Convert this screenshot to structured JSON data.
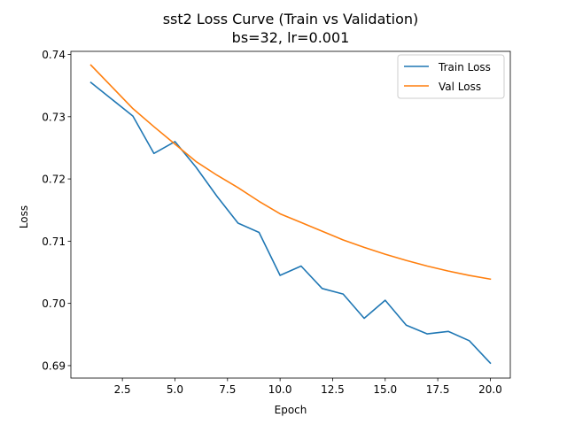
{
  "chart_data": {
    "type": "line",
    "title": "sst2 Loss Curve (Train vs Validation)",
    "subtitle": "bs=32, lr=0.001",
    "xlabel": "Epoch",
    "ylabel": "Loss",
    "xlim": [
      0.05,
      20.95
    ],
    "ylim": [
      0.688,
      0.7405
    ],
    "xticks": [
      2.5,
      5.0,
      7.5,
      10.0,
      12.5,
      15.0,
      17.5,
      20.0
    ],
    "xtick_labels": [
      "2.5",
      "5.0",
      "7.5",
      "10.0",
      "12.5",
      "15.0",
      "17.5",
      "20.0"
    ],
    "yticks": [
      0.69,
      0.7,
      0.71,
      0.72,
      0.73,
      0.74
    ],
    "ytick_labels": [
      "0.69",
      "0.70",
      "0.71",
      "0.72",
      "0.73",
      "0.74"
    ],
    "grid": false,
    "legend_position": "top-right",
    "x": [
      1,
      2,
      3,
      4,
      5,
      6,
      7,
      8,
      9,
      10,
      11,
      12,
      13,
      14,
      15,
      16,
      17,
      18,
      19,
      20
    ],
    "series": [
      {
        "name": "Train Loss",
        "color": "#1f77b4",
        "values": [
          0.7355,
          0.7328,
          0.7301,
          0.7241,
          0.726,
          0.7219,
          0.7172,
          0.7129,
          0.7114,
          0.7045,
          0.706,
          0.7024,
          0.7015,
          0.6976,
          0.7005,
          0.6965,
          0.6951,
          0.6955,
          0.694,
          0.6904
        ]
      },
      {
        "name": "Val Loss",
        "color": "#ff7f0e",
        "values": [
          0.7383,
          0.7348,
          0.7313,
          0.7284,
          0.7256,
          0.7228,
          0.7206,
          0.7186,
          0.7164,
          0.7144,
          0.713,
          0.7116,
          0.7102,
          0.709,
          0.7079,
          0.7069,
          0.706,
          0.7052,
          0.7045,
          0.7039
        ]
      }
    ]
  }
}
